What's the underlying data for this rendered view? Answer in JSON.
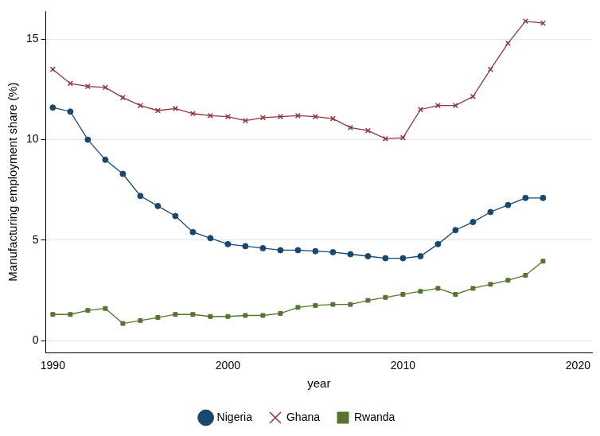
{
  "chart_data": {
    "type": "line",
    "x_label": "year",
    "y_label": "Manufacturing employment share (%)",
    "x": [
      1990,
      1991,
      1992,
      1993,
      1994,
      1995,
      1996,
      1997,
      1998,
      1999,
      2000,
      2001,
      2002,
      2003,
      2004,
      2005,
      2006,
      2007,
      2008,
      2009,
      2010,
      2011,
      2012,
      2013,
      2014,
      2015,
      2016,
      2017,
      2018
    ],
    "series": [
      {
        "name": "Nigeria",
        "color": "#1a476f",
        "marker": "circle",
        "values": [
          11.6,
          11.4,
          10.0,
          9.0,
          8.3,
          7.2,
          6.7,
          6.2,
          5.4,
          5.1,
          4.8,
          4.7,
          4.6,
          4.5,
          4.5,
          4.45,
          4.4,
          4.3,
          4.2,
          4.1,
          4.1,
          4.2,
          4.8,
          5.5,
          5.9,
          6.4,
          6.75,
          7.1,
          7.1
        ]
      },
      {
        "name": "Ghana",
        "color": "#90353b",
        "marker": "x",
        "values": [
          13.5,
          12.8,
          12.65,
          12.6,
          12.1,
          11.7,
          11.45,
          11.55,
          11.3,
          11.2,
          11.15,
          10.95,
          11.1,
          11.15,
          11.2,
          11.15,
          11.05,
          10.6,
          10.45,
          10.05,
          10.1,
          11.5,
          11.7,
          11.7,
          12.15,
          13.5,
          14.8,
          15.9,
          15.8
        ]
      },
      {
        "name": "Rwanda",
        "color": "#55752f",
        "marker": "square",
        "values": [
          1.3,
          1.3,
          1.5,
          1.6,
          0.85,
          1.0,
          1.15,
          1.3,
          1.3,
          1.2,
          1.2,
          1.25,
          1.25,
          1.35,
          1.65,
          1.75,
          1.8,
          1.8,
          2.0,
          2.15,
          2.3,
          2.45,
          2.6,
          2.3,
          2.6,
          2.8,
          3.0,
          3.25,
          3.95
        ]
      }
    ],
    "xlim": [
      1989.6,
      2020.8
    ],
    "xticks": [
      1990,
      2000,
      2010,
      2020
    ],
    "ylim": [
      -0.6,
      16.4
    ],
    "yticks": [
      0,
      5,
      10,
      15
    ],
    "grid": "y",
    "legend": "bottom"
  }
}
